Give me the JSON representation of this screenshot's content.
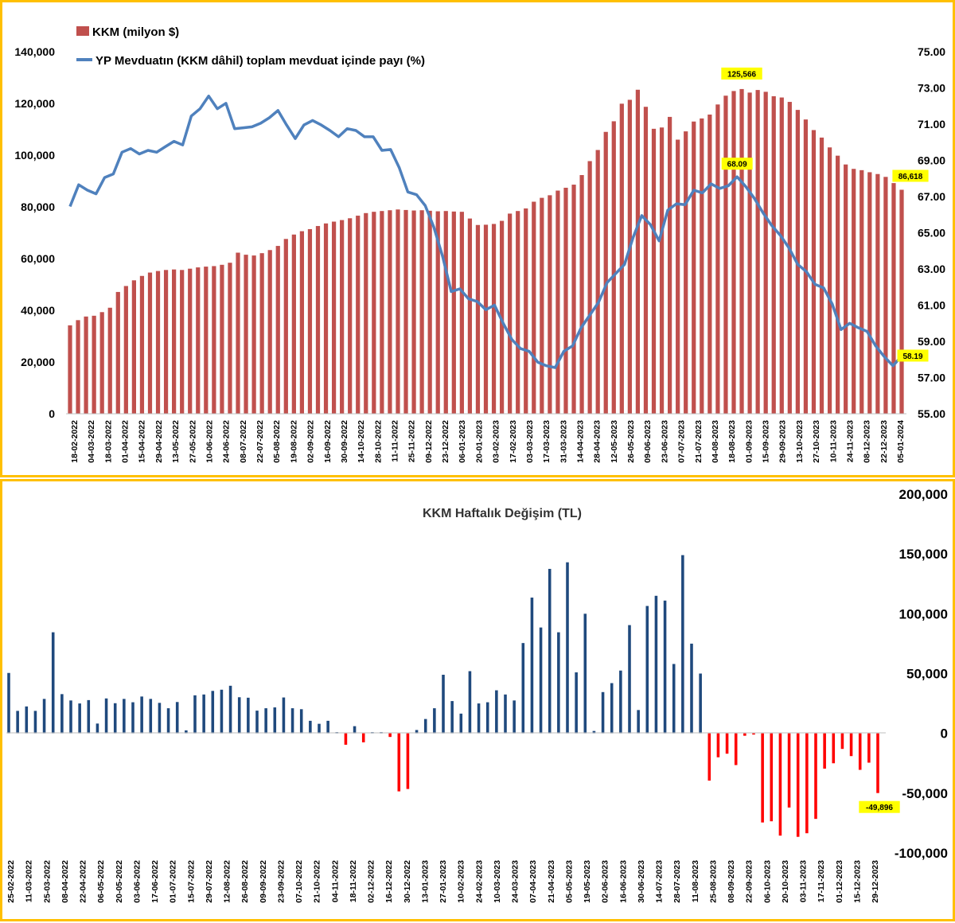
{
  "chart_data": [
    {
      "type": "bar+line",
      "title": "",
      "legend": [
        {
          "name": "KKM (milyon $)",
          "color": "#C0504D"
        },
        {
          "name": "YP Mevduatın (KKM dâhil) toplam mevduat içinde payı (%)",
          "color": "#4F81BD"
        }
      ],
      "legend_position": "top-left",
      "grid": false,
      "y_left": {
        "ticks": [
          "140,000",
          "120,000",
          "100,000",
          "80,000",
          "60,000",
          "40,000",
          "20,000",
          "0"
        ],
        "range": [
          0,
          140000
        ]
      },
      "y_right": {
        "ticks": [
          "75.00",
          "73.00",
          "71.00",
          "69.00",
          "67.00",
          "65.00",
          "63.00",
          "61.00",
          "59.00",
          "57.00",
          "55.00"
        ],
        "range": [
          55,
          75
        ]
      },
      "x_tick_labels": [
        "18-02-2022",
        "04-03-2022",
        "18-03-2022",
        "01-04-2022",
        "15-04-2022",
        "29-04-2022",
        "13-05-2022",
        "27-05-2022",
        "10-06-2022",
        "24-06-2022",
        "08-07-2022",
        "22-07-2022",
        "05-08-2022",
        "19-08-2022",
        "02-09-2022",
        "16-09-2022",
        "30-09-2022",
        "14-10-2022",
        "28-10-2022",
        "11-11-2022",
        "25-11-2022",
        "09-12-2022",
        "23-12-2022",
        "06-01-2023",
        "20-01-2023",
        "03-02-2023",
        "17-02-2023",
        "03-03-2023",
        "17-03-2023",
        "31-03-2023",
        "14-04-2023",
        "28-04-2023",
        "12-05-2023",
        "26-05-2023",
        "09-06-2023",
        "23-06-2023",
        "07-07-2023",
        "21-07-2023",
        "04-08-2023",
        "18-08-2023",
        "01-09-2023",
        "15-09-2023",
        "29-09-2023",
        "13-10-2023",
        "27-10-2023",
        "10-11-2023",
        "24-11-2023",
        "08-12-2023",
        "22-12-2023",
        "05-01-2024"
      ],
      "series": [
        {
          "name": "KKM (milyon $)",
          "type": "bar",
          "values": [
            34200,
            36200,
            37600,
            37900,
            39300,
            41000,
            47100,
            49400,
            51600,
            53300,
            54600,
            55200,
            55600,
            55800,
            55600,
            56100,
            56600,
            56900,
            57100,
            57600,
            58400,
            62300,
            61500,
            61200,
            62100,
            63300,
            64900,
            67600,
            69300,
            70600,
            71400,
            72600,
            73600,
            74300,
            74900,
            75600,
            76600,
            77600,
            78100,
            78400,
            78700,
            79000,
            78800,
            78600,
            78700,
            78500,
            78300,
            78400,
            78200,
            78100,
            75500,
            73000,
            73100,
            73400,
            74600,
            77400,
            78400,
            79400,
            82000,
            83500,
            84500,
            86300,
            87400,
            88600,
            92300,
            97700,
            102000,
            109000,
            113100,
            119900,
            121400,
            125300,
            118700,
            110200,
            110700,
            114800,
            106000,
            109200,
            113000,
            114200,
            115700,
            119600,
            123000,
            124800,
            125566,
            124200,
            125200,
            124500,
            122800,
            122300,
            120600,
            117500,
            113800,
            109700,
            106800,
            103000,
            99800,
            96400,
            94700,
            94200,
            93400,
            92700,
            91600,
            89200,
            86618
          ],
          "callout": "125,566",
          "last_callout": "86,618"
        },
        {
          "name": "YP Mevduatın (KKM dâhil) toplam mevduat içinde payı (%)",
          "type": "line",
          "axis": "right",
          "values": [
            66.45,
            67.65,
            67.35,
            67.15,
            68.05,
            68.25,
            69.45,
            69.65,
            69.35,
            69.55,
            69.45,
            69.75,
            70.05,
            69.85,
            71.45,
            71.85,
            72.55,
            71.85,
            72.15,
            70.75,
            70.8,
            70.85,
            71.05,
            71.35,
            71.75,
            70.95,
            70.2,
            70.95,
            71.2,
            70.95,
            70.65,
            70.3,
            70.75,
            70.65,
            70.3,
            70.3,
            69.55,
            69.6,
            68.6,
            67.25,
            67.1,
            66.5,
            65.3,
            63.7,
            61.75,
            61.9,
            61.35,
            61.2,
            60.75,
            61.0,
            60.0,
            59.1,
            58.6,
            58.45,
            57.85,
            57.65,
            57.55,
            58.45,
            58.75,
            59.75,
            60.45,
            61.15,
            62.25,
            62.75,
            63.25,
            64.75,
            65.95,
            65.45,
            64.55,
            66.25,
            66.6,
            66.55,
            67.35,
            67.2,
            67.7,
            67.45,
            67.6,
            68.09,
            67.55,
            66.9,
            66.1,
            65.4,
            64.85,
            64.15,
            63.25,
            62.85,
            62.15,
            61.95,
            61.05,
            59.65,
            60.0,
            59.75,
            59.55,
            58.75,
            58.15,
            57.65,
            58.19
          ],
          "callout": "68.09",
          "last_callout": "58.19"
        }
      ]
    },
    {
      "type": "bar",
      "title": "KKM Haftalık Değişim (TL)",
      "grid": false,
      "y": {
        "ticks": [
          "200,000",
          "150,000",
          "100,000",
          "50,000",
          "0",
          "-50,000",
          "-100,000"
        ],
        "range": [
          -100000,
          200000
        ]
      },
      "colors": {
        "positive": "#1F497D",
        "negative": "#FF0000"
      },
      "x_tick_labels": [
        "25-02-2022",
        "11-03-2022",
        "25-03-2022",
        "08-04-2022",
        "22-04-2022",
        "06-05-2022",
        "20-05-2022",
        "03-06-2022",
        "17-06-2022",
        "01-07-2022",
        "15-07-2022",
        "29-07-2022",
        "12-08-2022",
        "26-08-2022",
        "09-09-2022",
        "23-09-2022",
        "07-10-2022",
        "21-10-2022",
        "04-11-2022",
        "18-11-2022",
        "02-12-2022",
        "16-12-2022",
        "30-12-2022",
        "13-01-2023",
        "27-01-2023",
        "10-02-2023",
        "24-02-2023",
        "10-03-2023",
        "24-03-2023",
        "07-04-2023",
        "21-04-2023",
        "05-05-2023",
        "19-05-2023",
        "02-06-2023",
        "16-06-2023",
        "30-06-2023",
        "14-07-2023",
        "28-07-2023",
        "11-08-2023",
        "25-08-2023",
        "08-09-2023",
        "22-09-2023",
        "06-10-2023",
        "20-10-2023",
        "03-11-2023",
        "17-11-2023",
        "01-12-2023",
        "15-12-2023",
        "29-12-2023"
      ],
      "values": [
        50500,
        18800,
        22500,
        18800,
        28800,
        84500,
        32800,
        27500,
        25000,
        27800,
        8200,
        29200,
        25200,
        28800,
        26000,
        30800,
        28800,
        25500,
        21000,
        26200,
        2500,
        31800,
        32500,
        35500,
        36500,
        39800,
        30200,
        29800,
        19000,
        21000,
        21700,
        30000,
        21000,
        20200,
        10500,
        8000,
        10500,
        1000,
        -9500,
        6000,
        -7500,
        1000,
        1000,
        -3000,
        -48500,
        -46500,
        2800,
        12000,
        21000,
        49000,
        27000,
        16500,
        52000,
        25000,
        26000,
        36000,
        32500,
        27500,
        75500,
        113500,
        88500,
        137500,
        84500,
        143000,
        51000,
        100000,
        2000,
        34500,
        42000,
        52500,
        90500,
        19500,
        106500,
        115000,
        111000,
        58000,
        149000,
        75000,
        50000,
        -39500,
        -20000,
        -17000,
        -26500,
        -2000,
        -1000,
        -74500,
        -73500,
        -85500,
        -62000,
        -86500,
        -83500,
        -71500,
        -29500,
        -25000,
        -13000,
        -19000,
        -30500,
        -24500,
        -49896
      ],
      "last_callout": "-49,896"
    }
  ]
}
